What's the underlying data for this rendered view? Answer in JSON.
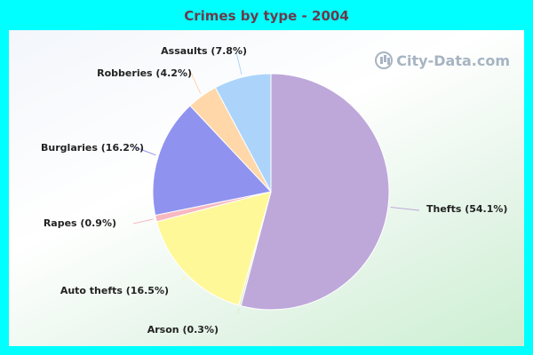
{
  "chart_data": {
    "type": "pie",
    "title": "Crimes by type - 2004",
    "slices": [
      {
        "label": "Thefts",
        "value": 54.1,
        "display": "Thefts (54.1%)",
        "color": "#bea8da"
      },
      {
        "label": "Arson",
        "value": 0.3,
        "display": "Arson (0.3%)",
        "color": "#dcedc8"
      },
      {
        "label": "Auto thefts",
        "value": 16.5,
        "display": "Auto thefts (16.5%)",
        "color": "#fff899"
      },
      {
        "label": "Rapes",
        "value": 0.9,
        "display": "Rapes (0.9%)",
        "color": "#f7b8c0"
      },
      {
        "label": "Burglaries",
        "value": 16.2,
        "display": "Burglaries (16.2%)",
        "color": "#8f93ef"
      },
      {
        "label": "Robberies",
        "value": 4.2,
        "display": "Robberies (4.2%)",
        "color": "#ffd7a8"
      },
      {
        "label": "Assaults",
        "value": 7.8,
        "display": "Assaults (7.8%)",
        "color": "#acd4fb"
      }
    ]
  },
  "watermark": {
    "text": "City-Data.com",
    "icon": "chart-icon"
  }
}
